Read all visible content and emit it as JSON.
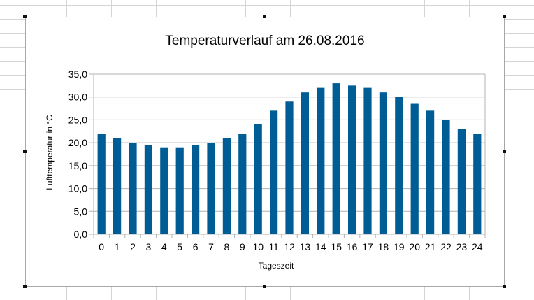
{
  "chart_data": {
    "type": "bar",
    "title": "Temperaturverlauf am 26.08.2016",
    "xlabel": "Tageszeit",
    "ylabel": "Lufttemperatur in °C",
    "categories": [
      "0",
      "1",
      "2",
      "3",
      "4",
      "5",
      "6",
      "7",
      "8",
      "9",
      "10",
      "11",
      "12",
      "13",
      "14",
      "15",
      "16",
      "17",
      "18",
      "19",
      "20",
      "21",
      "22",
      "23",
      "24"
    ],
    "values": [
      22,
      21,
      20,
      19.5,
      19,
      19,
      19.5,
      20,
      21,
      22,
      24,
      27,
      29,
      31,
      32,
      33,
      32.5,
      32,
      31,
      30,
      28.5,
      27,
      25,
      23,
      22
    ],
    "ylim": [
      0,
      35
    ],
    "yticks": [
      "0,0",
      "5,0",
      "10,0",
      "15,0",
      "20,0",
      "25,0",
      "30,0",
      "35,0"
    ],
    "bar_color": "#005c94",
    "grid": true,
    "legend": false
  }
}
